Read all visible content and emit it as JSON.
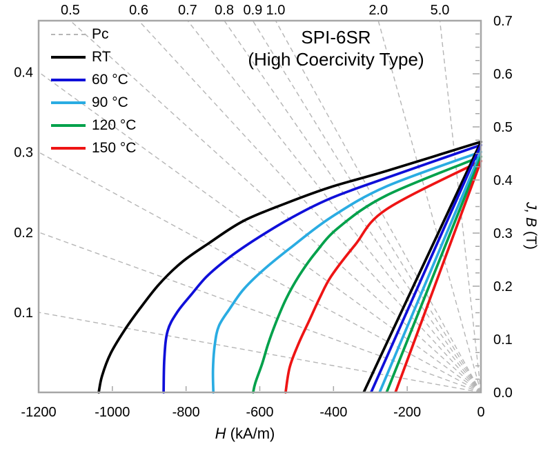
{
  "figure": {
    "title": {
      "line1": "SPI-6SR",
      "line2": "(High Coercivity Type)"
    },
    "legend": {
      "items": [
        {
          "label": "Pc",
          "color": "#b5b5b5",
          "dashed": true
        },
        {
          "label": "RT",
          "color": "#000000",
          "dashed": false
        },
        {
          "label": "60 °C",
          "color": "#0f0fd9",
          "dashed": false
        },
        {
          "label": "90 °C",
          "color": "#2aace2",
          "dashed": false
        },
        {
          "label": "120 °C",
          "color": "#00a14b",
          "dashed": false
        },
        {
          "label": "150 °C",
          "color": "#ee1414",
          "dashed": false
        }
      ]
    },
    "x_axis": {
      "var": "H",
      "unit": " (kA/m)"
    },
    "y_axis": {
      "var": "J, B",
      "unit": " (T)"
    },
    "colors": {
      "spine": "#a6a6a6",
      "pc_line": "#b5b5b5",
      "text": "#000000"
    }
  },
  "chart_data": {
    "type": "line",
    "title": "SPI-6SR (High Coercivity Type)",
    "xlabel": "H (kA/m)",
    "ylabel": "J, B (T)",
    "xlim": [
      -1200,
      0
    ],
    "ylim": [
      0,
      0.7
    ],
    "x_ticks": [
      -1200,
      -1000,
      -800,
      -600,
      -400,
      -200,
      0
    ],
    "y_ticks": [
      0.0,
      0.1,
      0.2,
      0.3,
      0.4,
      0.5,
      0.6,
      0.7
    ],
    "y_minor_step": 0.025,
    "grid": false,
    "legend_position": "upper-left",
    "pc_lines": {
      "legend_label": "Pc",
      "values": [
        0.1,
        0.2,
        0.3,
        0.4,
        0.5,
        0.6,
        0.7,
        0.8,
        0.9,
        1.0,
        2.0,
        5.0
      ],
      "left_edge_labels": [
        0.1,
        0.2,
        0.3,
        0.4
      ],
      "top_edge_labels": [
        0.5,
        0.6,
        0.7,
        0.8,
        0.9,
        1.0,
        2.0,
        5.0
      ],
      "T_per_kAm_factor": 0.0012566
    },
    "series": [
      {
        "name": "RT",
        "color": "#000000",
        "j_curve": [
          [
            0,
            0.472
          ],
          [
            -256,
            0.417
          ],
          [
            -406,
            0.387
          ],
          [
            -522,
            0.358
          ],
          [
            -644,
            0.323
          ],
          [
            -738,
            0.281
          ],
          [
            -812,
            0.245
          ],
          [
            -874,
            0.203
          ],
          [
            -925,
            0.158
          ],
          [
            -968,
            0.116
          ],
          [
            -1005,
            0.073
          ],
          [
            -1028,
            0.031
          ],
          [
            -1037,
            0
          ]
        ],
        "b_line": [
          [
            -318,
            0
          ],
          [
            0,
            0.472
          ]
        ]
      },
      {
        "name": "60 °C",
        "color": "#0f0fd9",
        "j_curve": [
          [
            0,
            0.466
          ],
          [
            -256,
            0.404
          ],
          [
            -406,
            0.366
          ],
          [
            -519,
            0.327
          ],
          [
            -612,
            0.288
          ],
          [
            -681,
            0.255
          ],
          [
            -743,
            0.219
          ],
          [
            -786,
            0.184
          ],
          [
            -824,
            0.151
          ],
          [
            -850,
            0.116
          ],
          [
            -859,
            0.064
          ],
          [
            -861,
            0
          ]
        ],
        "b_line": [
          [
            -298,
            0
          ],
          [
            0,
            0.466
          ]
        ]
      },
      {
        "name": "90 °C",
        "color": "#2aace2",
        "j_curve": [
          [
            0,
            0.453
          ],
          [
            -256,
            0.388
          ],
          [
            -406,
            0.33
          ],
          [
            -519,
            0.271
          ],
          [
            -588,
            0.232
          ],
          [
            -644,
            0.194
          ],
          [
            -681,
            0.158
          ],
          [
            -711,
            0.125
          ],
          [
            -722,
            0.09
          ],
          [
            -727,
            0.044
          ],
          [
            -726,
            0
          ]
        ],
        "b_line": [
          [
            -275,
            0
          ],
          [
            0,
            0.453
          ]
        ]
      },
      {
        "name": "120 °C",
        "color": "#00a14b",
        "j_curve": [
          [
            0,
            0.444
          ],
          [
            -256,
            0.371
          ],
          [
            -387,
            0.31
          ],
          [
            -450,
            0.262
          ],
          [
            -494,
            0.219
          ],
          [
            -528,
            0.177
          ],
          [
            -556,
            0.132
          ],
          [
            -578,
            0.09
          ],
          [
            -593,
            0.055
          ],
          [
            -612,
            0.018
          ],
          [
            -618,
            0
          ]
        ],
        "b_line": [
          [
            -256,
            0
          ],
          [
            0,
            0.444
          ]
        ]
      },
      {
        "name": "150 °C",
        "color": "#ee1414",
        "j_curve": [
          [
            0,
            0.436
          ],
          [
            -256,
            0.345
          ],
          [
            -341,
            0.278
          ],
          [
            -406,
            0.219
          ],
          [
            -438,
            0.177
          ],
          [
            -468,
            0.132
          ],
          [
            -496,
            0.09
          ],
          [
            -519,
            0.047
          ],
          [
            -530,
            0
          ]
        ],
        "b_line": [
          [
            -232,
            0
          ],
          [
            0,
            0.436
          ]
        ]
      }
    ]
  }
}
